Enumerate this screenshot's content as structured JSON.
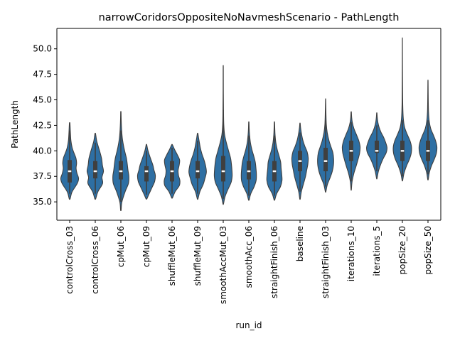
{
  "chart_data": {
    "type": "violin",
    "title": "narrowCoridorsOppositeNoNavmeshScenario - PathLength",
    "xlabel": "run_id",
    "ylabel": "PathLength",
    "ylim": [
      33.2,
      52.0
    ],
    "yticks": [
      "35.0",
      "37.5",
      "40.0",
      "42.5",
      "45.0",
      "47.5",
      "50.0"
    ],
    "grid": false,
    "violin_color": "#2e6fa3",
    "categories": [
      {
        "name": "controlCross_03",
        "min": 35.3,
        "max": 42.7,
        "q1": 36.9,
        "median": 38.0,
        "q3": 39.1,
        "wlo": 35.8,
        "whi": 42.0,
        "density": [
          [
            35.3,
            0.05
          ],
          [
            36.0,
            0.28
          ],
          [
            36.8,
            0.85
          ],
          [
            37.3,
            1.0
          ],
          [
            37.8,
            0.82
          ],
          [
            38.3,
            0.72
          ],
          [
            38.8,
            0.78
          ],
          [
            39.3,
            0.7
          ],
          [
            39.8,
            0.48
          ],
          [
            40.3,
            0.28
          ],
          [
            41.0,
            0.14
          ],
          [
            41.8,
            0.08
          ],
          [
            42.7,
            0.03
          ]
        ]
      },
      {
        "name": "controlCross_06",
        "min": 35.3,
        "max": 41.7,
        "q1": 37.3,
        "median": 38.0,
        "q3": 39.0,
        "wlo": 35.8,
        "whi": 40.8,
        "density": [
          [
            35.3,
            0.05
          ],
          [
            36.0,
            0.3
          ],
          [
            36.8,
            0.82
          ],
          [
            37.4,
            0.75
          ],
          [
            38.0,
            0.92
          ],
          [
            38.6,
            0.8
          ],
          [
            39.2,
            0.72
          ],
          [
            39.8,
            0.55
          ],
          [
            40.3,
            0.38
          ],
          [
            40.9,
            0.18
          ],
          [
            41.3,
            0.1
          ],
          [
            41.7,
            0.03
          ]
        ]
      },
      {
        "name": "cpMut_06",
        "min": 34.2,
        "max": 43.8,
        "q1": 37.2,
        "median": 38.0,
        "q3": 39.0,
        "wlo": 35.0,
        "whi": 42.0,
        "density": [
          [
            34.2,
            0.03
          ],
          [
            35.0,
            0.12
          ],
          [
            36.0,
            0.48
          ],
          [
            36.8,
            0.85
          ],
          [
            37.5,
            0.9
          ],
          [
            38.1,
            0.8
          ],
          [
            38.7,
            0.72
          ],
          [
            39.3,
            0.62
          ],
          [
            39.9,
            0.45
          ],
          [
            40.5,
            0.3
          ],
          [
            41.2,
            0.17
          ],
          [
            42.0,
            0.09
          ],
          [
            43.0,
            0.04
          ],
          [
            43.8,
            0.02
          ]
        ]
      },
      {
        "name": "cpMut_09",
        "min": 35.3,
        "max": 40.6,
        "q1": 37.0,
        "median": 38.0,
        "q3": 38.5,
        "wlo": 35.7,
        "whi": 40.0,
        "density": [
          [
            35.3,
            0.05
          ],
          [
            35.8,
            0.3
          ],
          [
            36.4,
            0.62
          ],
          [
            37.0,
            0.92
          ],
          [
            37.6,
            1.0
          ],
          [
            38.1,
            0.85
          ],
          [
            38.6,
            0.72
          ],
          [
            39.1,
            0.52
          ],
          [
            39.6,
            0.32
          ],
          [
            40.1,
            0.15
          ],
          [
            40.6,
            0.03
          ]
        ]
      },
      {
        "name": "shuffleMut_06",
        "min": 35.4,
        "max": 40.6,
        "q1": 37.0,
        "median": 38.0,
        "q3": 39.0,
        "wlo": 35.8,
        "whi": 40.3,
        "density": [
          [
            35.4,
            0.05
          ],
          [
            36.0,
            0.35
          ],
          [
            36.6,
            0.82
          ],
          [
            37.1,
            0.88
          ],
          [
            37.6,
            0.72
          ],
          [
            38.1,
            0.68
          ],
          [
            38.6,
            0.8
          ],
          [
            39.1,
            0.85
          ],
          [
            39.6,
            0.6
          ],
          [
            40.1,
            0.3
          ],
          [
            40.6,
            0.04
          ]
        ]
      },
      {
        "name": "shuffleMut_09",
        "min": 35.3,
        "max": 41.7,
        "q1": 37.3,
        "median": 38.0,
        "q3": 39.0,
        "wlo": 35.8,
        "whi": 41.0,
        "density": [
          [
            35.3,
            0.04
          ],
          [
            36.0,
            0.25
          ],
          [
            36.7,
            0.62
          ],
          [
            37.3,
            0.82
          ],
          [
            37.9,
            0.98
          ],
          [
            38.5,
            0.9
          ],
          [
            39.1,
            0.72
          ],
          [
            39.7,
            0.48
          ],
          [
            40.3,
            0.3
          ],
          [
            40.9,
            0.18
          ],
          [
            41.3,
            0.1
          ],
          [
            41.7,
            0.03
          ]
        ]
      },
      {
        "name": "smoothAccMut_03",
        "min": 34.8,
        "max": 48.2,
        "q1": 37.0,
        "median": 38.0,
        "q3": 39.5,
        "wlo": 35.3,
        "whi": 44.0,
        "density": [
          [
            34.8,
            0.03
          ],
          [
            35.5,
            0.2
          ],
          [
            36.2,
            0.52
          ],
          [
            36.9,
            0.88
          ],
          [
            37.5,
            1.0
          ],
          [
            38.1,
            0.98
          ],
          [
            38.7,
            0.92
          ],
          [
            39.3,
            0.82
          ],
          [
            40.0,
            0.6
          ],
          [
            40.8,
            0.35
          ],
          [
            41.6,
            0.15
          ],
          [
            42.6,
            0.06
          ],
          [
            44.0,
            0.03
          ],
          [
            46.0,
            0.015
          ],
          [
            48.2,
            0.01
          ]
        ]
      },
      {
        "name": "smoothAcc_06",
        "min": 35.2,
        "max": 42.8,
        "q1": 37.2,
        "median": 38.0,
        "q3": 39.0,
        "wlo": 35.6,
        "whi": 41.5,
        "density": [
          [
            35.2,
            0.04
          ],
          [
            35.8,
            0.22
          ],
          [
            36.5,
            0.6
          ],
          [
            37.1,
            0.82
          ],
          [
            37.7,
            0.85
          ],
          [
            38.3,
            0.8
          ],
          [
            38.9,
            0.72
          ],
          [
            39.5,
            0.55
          ],
          [
            40.1,
            0.35
          ],
          [
            40.8,
            0.18
          ],
          [
            41.6,
            0.08
          ],
          [
            42.2,
            0.04
          ],
          [
            42.8,
            0.02
          ]
        ]
      },
      {
        "name": "straightFinish_06",
        "min": 35.2,
        "max": 42.8,
        "q1": 37.0,
        "median": 38.0,
        "q3": 39.0,
        "wlo": 35.6,
        "whi": 41.5,
        "density": [
          [
            35.2,
            0.04
          ],
          [
            35.8,
            0.25
          ],
          [
            36.5,
            0.68
          ],
          [
            37.1,
            0.85
          ],
          [
            37.7,
            0.82
          ],
          [
            38.3,
            0.75
          ],
          [
            38.9,
            0.7
          ],
          [
            39.5,
            0.52
          ],
          [
            40.1,
            0.32
          ],
          [
            40.8,
            0.16
          ],
          [
            41.6,
            0.07
          ],
          [
            42.2,
            0.04
          ],
          [
            42.8,
            0.02
          ]
        ]
      },
      {
        "name": "baseline",
        "min": 35.3,
        "max": 42.7,
        "q1": 38.0,
        "median": 39.0,
        "q3": 40.0,
        "wlo": 36.0,
        "whi": 41.8,
        "density": [
          [
            35.3,
            0.03
          ],
          [
            36.0,
            0.15
          ],
          [
            36.8,
            0.4
          ],
          [
            37.5,
            0.62
          ],
          [
            38.1,
            0.75
          ],
          [
            38.7,
            0.88
          ],
          [
            39.3,
            0.92
          ],
          [
            39.9,
            0.8
          ],
          [
            40.5,
            0.52
          ],
          [
            41.1,
            0.3
          ],
          [
            41.8,
            0.14
          ],
          [
            42.3,
            0.06
          ],
          [
            42.7,
            0.02
          ]
        ]
      },
      {
        "name": "straightFinish_03",
        "min": 36.0,
        "max": 45.0,
        "q1": 38.0,
        "median": 39.0,
        "q3": 40.3,
        "wlo": 36.5,
        "whi": 43.0,
        "density": [
          [
            36.0,
            0.03
          ],
          [
            36.7,
            0.2
          ],
          [
            37.4,
            0.52
          ],
          [
            38.0,
            0.75
          ],
          [
            38.6,
            0.88
          ],
          [
            39.2,
            0.9
          ],
          [
            39.8,
            0.82
          ],
          [
            40.4,
            0.6
          ],
          [
            41.0,
            0.38
          ],
          [
            41.8,
            0.18
          ],
          [
            42.6,
            0.08
          ],
          [
            43.6,
            0.04
          ],
          [
            45.0,
            0.01
          ]
        ]
      },
      {
        "name": "iterations_10",
        "min": 36.2,
        "max": 43.8,
        "q1": 39.0,
        "median": 40.0,
        "q3": 41.0,
        "wlo": 37.0,
        "whi": 42.8,
        "density": [
          [
            36.2,
            0.02
          ],
          [
            37.0,
            0.1
          ],
          [
            37.8,
            0.3
          ],
          [
            38.5,
            0.55
          ],
          [
            39.2,
            0.78
          ],
          [
            39.8,
            0.95
          ],
          [
            40.4,
            1.0
          ],
          [
            41.0,
            0.85
          ],
          [
            41.6,
            0.58
          ],
          [
            42.2,
            0.3
          ],
          [
            42.8,
            0.12
          ],
          [
            43.3,
            0.05
          ],
          [
            43.8,
            0.02
          ]
        ]
      },
      {
        "name": "iterations_5",
        "min": 37.3,
        "max": 43.7,
        "q1": 39.8,
        "median": 40.0,
        "q3": 41.0,
        "wlo": 38.0,
        "whi": 42.5,
        "density": [
          [
            37.3,
            0.03
          ],
          [
            38.0,
            0.18
          ],
          [
            38.7,
            0.45
          ],
          [
            39.3,
            0.75
          ],
          [
            39.8,
            1.05
          ],
          [
            40.3,
            1.15
          ],
          [
            40.8,
            1.0
          ],
          [
            41.3,
            0.78
          ],
          [
            41.8,
            0.48
          ],
          [
            42.3,
            0.26
          ],
          [
            42.8,
            0.12
          ],
          [
            43.3,
            0.05
          ],
          [
            43.7,
            0.02
          ]
        ]
      },
      {
        "name": "popSize_20",
        "min": 37.1,
        "max": 50.9,
        "q1": 39.0,
        "median": 40.0,
        "q3": 41.0,
        "wlo": 37.5,
        "whi": 43.0,
        "density": [
          [
            37.1,
            0.03
          ],
          [
            37.8,
            0.18
          ],
          [
            38.5,
            0.45
          ],
          [
            39.2,
            0.8
          ],
          [
            39.8,
            1.0
          ],
          [
            40.4,
            1.02
          ],
          [
            41.0,
            0.85
          ],
          [
            41.6,
            0.55
          ],
          [
            42.3,
            0.25
          ],
          [
            43.2,
            0.1
          ],
          [
            44.5,
            0.04
          ],
          [
            46.5,
            0.02
          ],
          [
            48.5,
            0.01
          ],
          [
            50.9,
            0.005
          ]
        ]
      },
      {
        "name": "popSize_50",
        "min": 37.2,
        "max": 46.8,
        "q1": 39.0,
        "median": 40.0,
        "q3": 41.0,
        "wlo": 37.7,
        "whi": 43.0,
        "density": [
          [
            37.2,
            0.03
          ],
          [
            37.9,
            0.16
          ],
          [
            38.6,
            0.42
          ],
          [
            39.2,
            0.72
          ],
          [
            39.8,
            0.95
          ],
          [
            40.4,
            1.0
          ],
          [
            41.0,
            0.85
          ],
          [
            41.6,
            0.58
          ],
          [
            42.2,
            0.3
          ],
          [
            42.9,
            0.14
          ],
          [
            43.8,
            0.06
          ],
          [
            45.0,
            0.03
          ],
          [
            46.8,
            0.01
          ]
        ]
      }
    ]
  }
}
